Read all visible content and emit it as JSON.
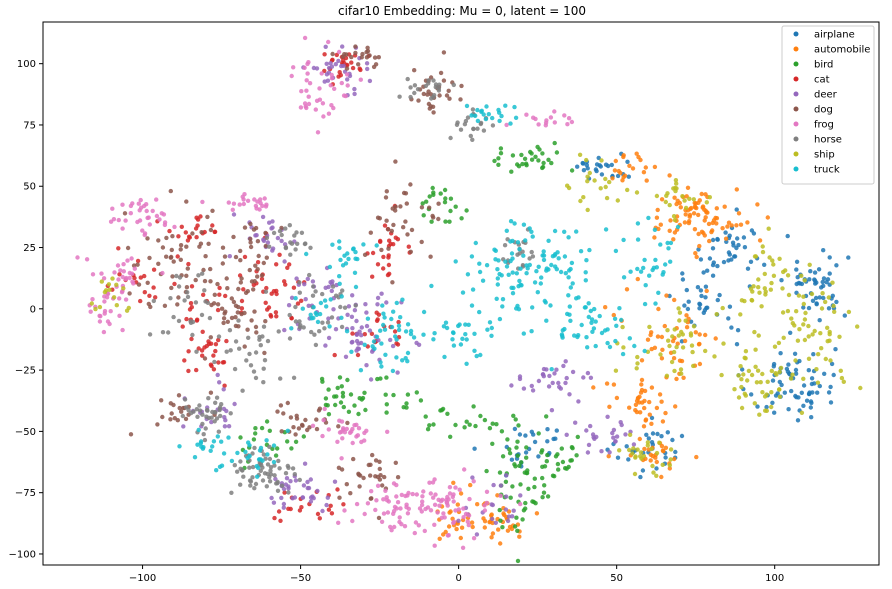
{
  "chart_data": {
    "type": "scatter",
    "title": "cifar10 Embedding: Mu = 0, latent = 100",
    "xlabel": "",
    "ylabel": "",
    "xlim": [
      -131.5,
      133
    ],
    "ylim": [
      -104.5,
      117
    ],
    "x_ticks": [
      -100,
      -50,
      0,
      50,
      100
    ],
    "x_tick_labels": [
      "−100",
      "−50",
      "0",
      "50",
      "100"
    ],
    "y_ticks": [
      -100,
      -75,
      -50,
      -25,
      0,
      25,
      50,
      75,
      100
    ],
    "y_tick_labels": [
      "−100",
      "−75",
      "−50",
      "−25",
      "0",
      "25",
      "50",
      "75",
      "100"
    ],
    "grid": false,
    "legend_position": "top-right",
    "series": [
      {
        "name": "airplane",
        "color": "#1f77b4",
        "clusters": [
          [
            105,
            -30,
            7,
            8,
            70
          ],
          [
            113,
            10,
            5,
            7,
            50
          ],
          [
            88,
            25,
            5,
            6,
            35
          ],
          [
            22,
            -55,
            6,
            5,
            25
          ],
          [
            45,
            58,
            5,
            4,
            25
          ],
          [
            62,
            -58,
            6,
            5,
            30
          ],
          [
            78,
            5,
            5,
            8,
            35
          ]
        ]
      },
      {
        "name": "automobile",
        "color": "#ff7f0e",
        "clusters": [
          [
            80,
            35,
            7,
            7,
            50
          ],
          [
            72,
            40,
            5,
            5,
            35
          ],
          [
            8,
            -85,
            9,
            5,
            60
          ],
          [
            58,
            -40,
            6,
            5,
            35
          ],
          [
            68,
            -10,
            8,
            10,
            45
          ],
          [
            55,
            58,
            4,
            4,
            20
          ],
          [
            62,
            -60,
            5,
            4,
            25
          ]
        ]
      },
      {
        "name": "bird",
        "color": "#2ca02c",
        "clusters": [
          [
            20,
            -70,
            6,
            10,
            55
          ],
          [
            -38,
            -35,
            4,
            4,
            25
          ],
          [
            -6,
            43,
            4,
            4,
            20
          ],
          [
            22,
            60,
            6,
            3,
            30
          ],
          [
            33,
            -60,
            4,
            5,
            20
          ],
          [
            -60,
            -55,
            5,
            4,
            20
          ],
          [
            5,
            -45,
            8,
            4,
            25
          ],
          [
            -20,
            -35,
            5,
            4,
            15
          ]
        ]
      },
      {
        "name": "cat",
        "color": "#d62728",
        "clusters": [
          [
            -80,
            -12,
            5,
            10,
            40
          ],
          [
            -60,
            10,
            6,
            8,
            40
          ],
          [
            -35,
            100,
            5,
            3,
            25
          ],
          [
            -85,
            30,
            5,
            5,
            20
          ],
          [
            -22,
            25,
            5,
            6,
            25
          ],
          [
            -45,
            -80,
            6,
            4,
            20
          ],
          [
            -100,
            10,
            6,
            6,
            20
          ],
          [
            -28,
            -12,
            6,
            6,
            20
          ]
        ]
      },
      {
        "name": "deer",
        "color": "#9467bd",
        "clusters": [
          [
            -30,
            -10,
            6,
            7,
            45
          ],
          [
            -52,
            -75,
            5,
            5,
            35
          ],
          [
            -42,
            5,
            6,
            6,
            30
          ],
          [
            -38,
            98,
            5,
            4,
            30
          ],
          [
            30,
            -30,
            6,
            5,
            30
          ],
          [
            45,
            -50,
            5,
            6,
            25
          ],
          [
            -60,
            30,
            5,
            5,
            25
          ],
          [
            10,
            -80,
            5,
            5,
            20
          ],
          [
            -75,
            -40,
            6,
            5,
            20
          ]
        ]
      },
      {
        "name": "dog",
        "color": "#8c564b",
        "clusters": [
          [
            -90,
            20,
            8,
            12,
            50
          ],
          [
            -70,
            0,
            6,
            10,
            45
          ],
          [
            -18,
            35,
            6,
            8,
            35
          ],
          [
            -8,
            88,
            5,
            5,
            30
          ],
          [
            -28,
            -70,
            5,
            5,
            30
          ],
          [
            -50,
            -45,
            6,
            4,
            25
          ],
          [
            -65,
            25,
            6,
            6,
            25
          ],
          [
            -88,
            -40,
            4,
            4,
            20
          ],
          [
            -30,
            103,
            5,
            2,
            20
          ]
        ]
      },
      {
        "name": "frog",
        "color": "#e377c2",
        "clusters": [
          [
            -5,
            -82,
            8,
            6,
            70
          ],
          [
            -20,
            -80,
            6,
            5,
            40
          ],
          [
            -100,
            38,
            6,
            4,
            35
          ],
          [
            -107,
            13,
            5,
            5,
            30
          ],
          [
            -45,
            90,
            6,
            8,
            40
          ],
          [
            -66,
            43,
            4,
            2,
            20
          ],
          [
            -35,
            -50,
            6,
            5,
            30
          ],
          [
            28,
            77,
            4,
            2,
            15
          ],
          [
            -112,
            0,
            4,
            6,
            20
          ]
        ]
      },
      {
        "name": "horse",
        "color": "#7f7f7f",
        "clusters": [
          [
            -62,
            -67,
            5,
            5,
            60
          ],
          [
            -80,
            -45,
            5,
            5,
            35
          ],
          [
            -45,
            0,
            7,
            10,
            35
          ],
          [
            5,
            75,
            4,
            3,
            20
          ],
          [
            -12,
            90,
            4,
            3,
            20
          ],
          [
            -68,
            -20,
            6,
            7,
            30
          ],
          [
            -85,
            0,
            6,
            8,
            25
          ],
          [
            18,
            22,
            4,
            4,
            20
          ],
          [
            -55,
            30,
            5,
            5,
            20
          ]
        ]
      },
      {
        "name": "ship",
        "color": "#bcbd22",
        "clusters": [
          [
            112,
            -10,
            7,
            10,
            60
          ],
          [
            95,
            -30,
            6,
            7,
            40
          ],
          [
            95,
            10,
            6,
            8,
            35
          ],
          [
            70,
            -15,
            8,
            8,
            40
          ],
          [
            60,
            -60,
            6,
            4,
            25
          ],
          [
            72,
            45,
            4,
            4,
            20
          ],
          [
            -110,
            5,
            4,
            5,
            15
          ],
          [
            45,
            50,
            5,
            5,
            20
          ]
        ]
      },
      {
        "name": "truck",
        "color": "#17becf",
        "clusters": [
          [
            -20,
            -10,
            6,
            7,
            45
          ],
          [
            15,
            15,
            8,
            8,
            60
          ],
          [
            40,
            -5,
            8,
            8,
            50
          ],
          [
            5,
            -8,
            6,
            6,
            30
          ],
          [
            30,
            20,
            7,
            8,
            40
          ],
          [
            -35,
            22,
            4,
            4,
            20
          ],
          [
            -65,
            -60,
            5,
            5,
            25
          ],
          [
            -42,
            0,
            5,
            5,
            20
          ],
          [
            60,
            20,
            5,
            8,
            30
          ],
          [
            8,
            80,
            4,
            3,
            20
          ],
          [
            -80,
            -55,
            4,
            4,
            15
          ]
        ]
      }
    ]
  }
}
